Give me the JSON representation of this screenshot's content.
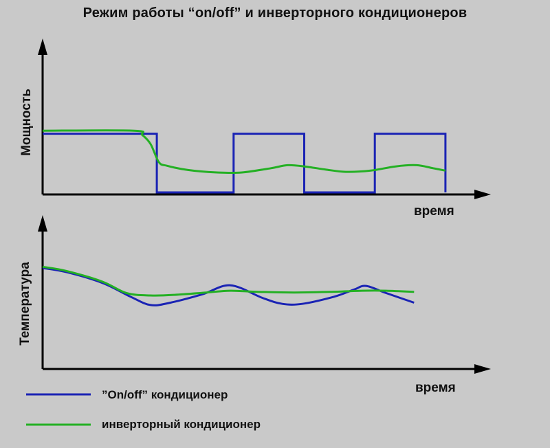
{
  "title": "Режим работы “on/off” и инверторного кондиционеров",
  "colors": {
    "background": "#c9c9c9",
    "onoff": "#1a23b4",
    "inverter": "#24b024",
    "axis": "#000000"
  },
  "chart_data": [
    {
      "type": "line",
      "ylabel": "Мощность",
      "xlabel": "время",
      "xlim": [
        0,
        100
      ],
      "ylim": [
        0,
        100
      ],
      "grid": false,
      "series": [
        {
          "name": "”On/off” кондиционер",
          "points": [
            [
              0,
              97
            ],
            [
              27.5,
              97
            ],
            [
              27.5,
              0
            ],
            [
              46,
              0
            ],
            [
              46,
              97
            ],
            [
              63,
              97
            ],
            [
              63,
              0
            ],
            [
              80,
              0
            ],
            [
              80,
              97
            ],
            [
              97,
              97
            ],
            [
              97,
              0
            ]
          ]
        },
        {
          "name": "инвертоный кондиционер",
          "points": [
            [
              0,
              102
            ],
            [
              22,
              102
            ],
            [
              24,
              95
            ],
            [
              26,
              80
            ],
            [
              28,
              50
            ],
            [
              30,
              44
            ],
            [
              35,
              37
            ],
            [
              42,
              33
            ],
            [
              48,
              33
            ],
            [
              55,
              40
            ],
            [
              59,
              45
            ],
            [
              63,
              43
            ],
            [
              68,
              38
            ],
            [
              73,
              34
            ],
            [
              79,
              36
            ],
            [
              85,
              43
            ],
            [
              90,
              45
            ],
            [
              94,
              40
            ],
            [
              97,
              36
            ]
          ]
        }
      ]
    },
    {
      "type": "line",
      "ylabel": "Температура",
      "xlabel": "время",
      "xlim": [
        0,
        100
      ],
      "ylim": [
        0,
        100
      ],
      "grid": false,
      "series": [
        {
          "name": "”On/off” кондиционер",
          "points": [
            [
              0,
              100
            ],
            [
              6,
              93
            ],
            [
              15,
              75
            ],
            [
              22,
              52
            ],
            [
              27,
              38
            ],
            [
              32,
              42
            ],
            [
              40,
              56
            ],
            [
              47,
              71
            ],
            [
              55,
              50
            ],
            [
              60,
              40
            ],
            [
              65,
              40
            ],
            [
              73,
              52
            ],
            [
              78,
              64
            ],
            [
              81,
              70
            ],
            [
              86,
              58
            ],
            [
              93,
              42
            ]
          ]
        },
        {
          "name": "инверторный кондиционер",
          "points": [
            [
              0,
              102
            ],
            [
              6,
              95
            ],
            [
              15,
              77
            ],
            [
              21,
              58
            ],
            [
              27,
              54
            ],
            [
              33,
              55
            ],
            [
              41,
              59
            ],
            [
              47,
              62
            ],
            [
              54,
              60
            ],
            [
              63,
              59
            ],
            [
              72,
              60
            ],
            [
              80,
              62
            ],
            [
              86,
              62
            ],
            [
              93,
              60
            ]
          ]
        }
      ]
    }
  ],
  "legend": [
    {
      "label": "”On/off” кондиционер",
      "color": "#1a23b4"
    },
    {
      "label": "инверторный кондиционер",
      "color": "#24b024"
    }
  ]
}
